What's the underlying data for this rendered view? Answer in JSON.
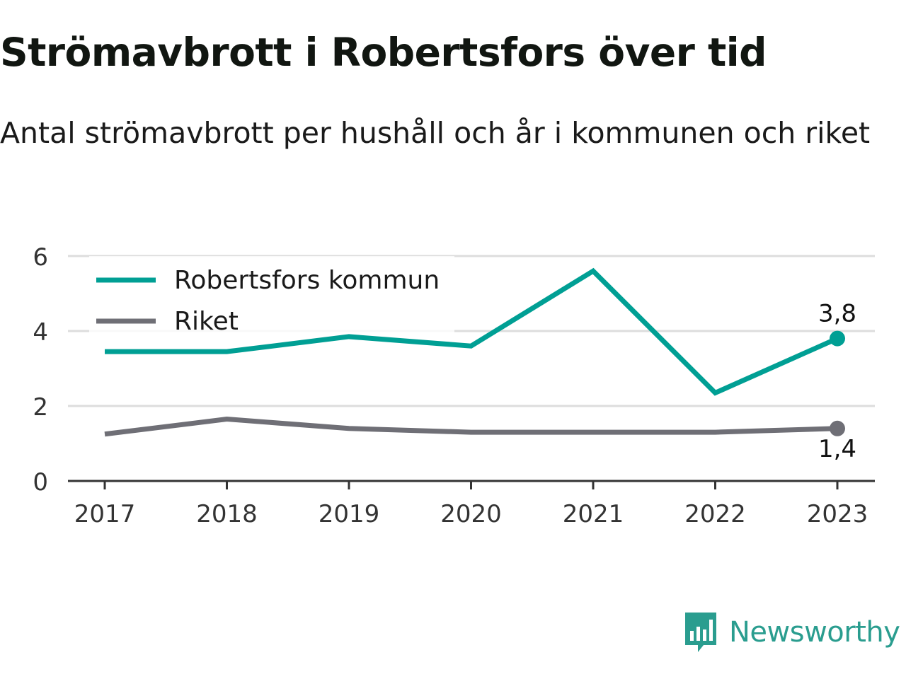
{
  "title": "Strömavbrott i Robertsfors över tid",
  "subtitle": "Antal strömavbrott per hushåll och år i kommunen och riket",
  "brand": {
    "name": "Newsworthy",
    "icon": "bar-chart-speech-bubble-icon"
  },
  "colors": {
    "robertsfors": "#009f94",
    "riket": "#6f6f76",
    "grid": "#dddddd",
    "axis": "#333333"
  },
  "chart_data": {
    "type": "line",
    "title": "Strömavbrott i Robertsfors över tid",
    "subtitle": "Antal strömavbrott per hushåll och år i kommunen och riket",
    "xlabel": "",
    "ylabel": "",
    "x": [
      "2017",
      "2018",
      "2019",
      "2020",
      "2021",
      "2022",
      "2023"
    ],
    "ylim": [
      0,
      6
    ],
    "yticks": [
      "0",
      "2",
      "4",
      "6"
    ],
    "grid": true,
    "legend_position": "top-left",
    "series": [
      {
        "name": "Robertsfors kommun",
        "values": [
          3.45,
          3.45,
          3.85,
          3.6,
          5.6,
          2.35,
          3.8
        ],
        "end_label": "3,8"
      },
      {
        "name": "Riket",
        "values": [
          1.25,
          1.65,
          1.4,
          1.3,
          1.3,
          1.3,
          1.4
        ],
        "end_label": "1,4"
      }
    ]
  }
}
